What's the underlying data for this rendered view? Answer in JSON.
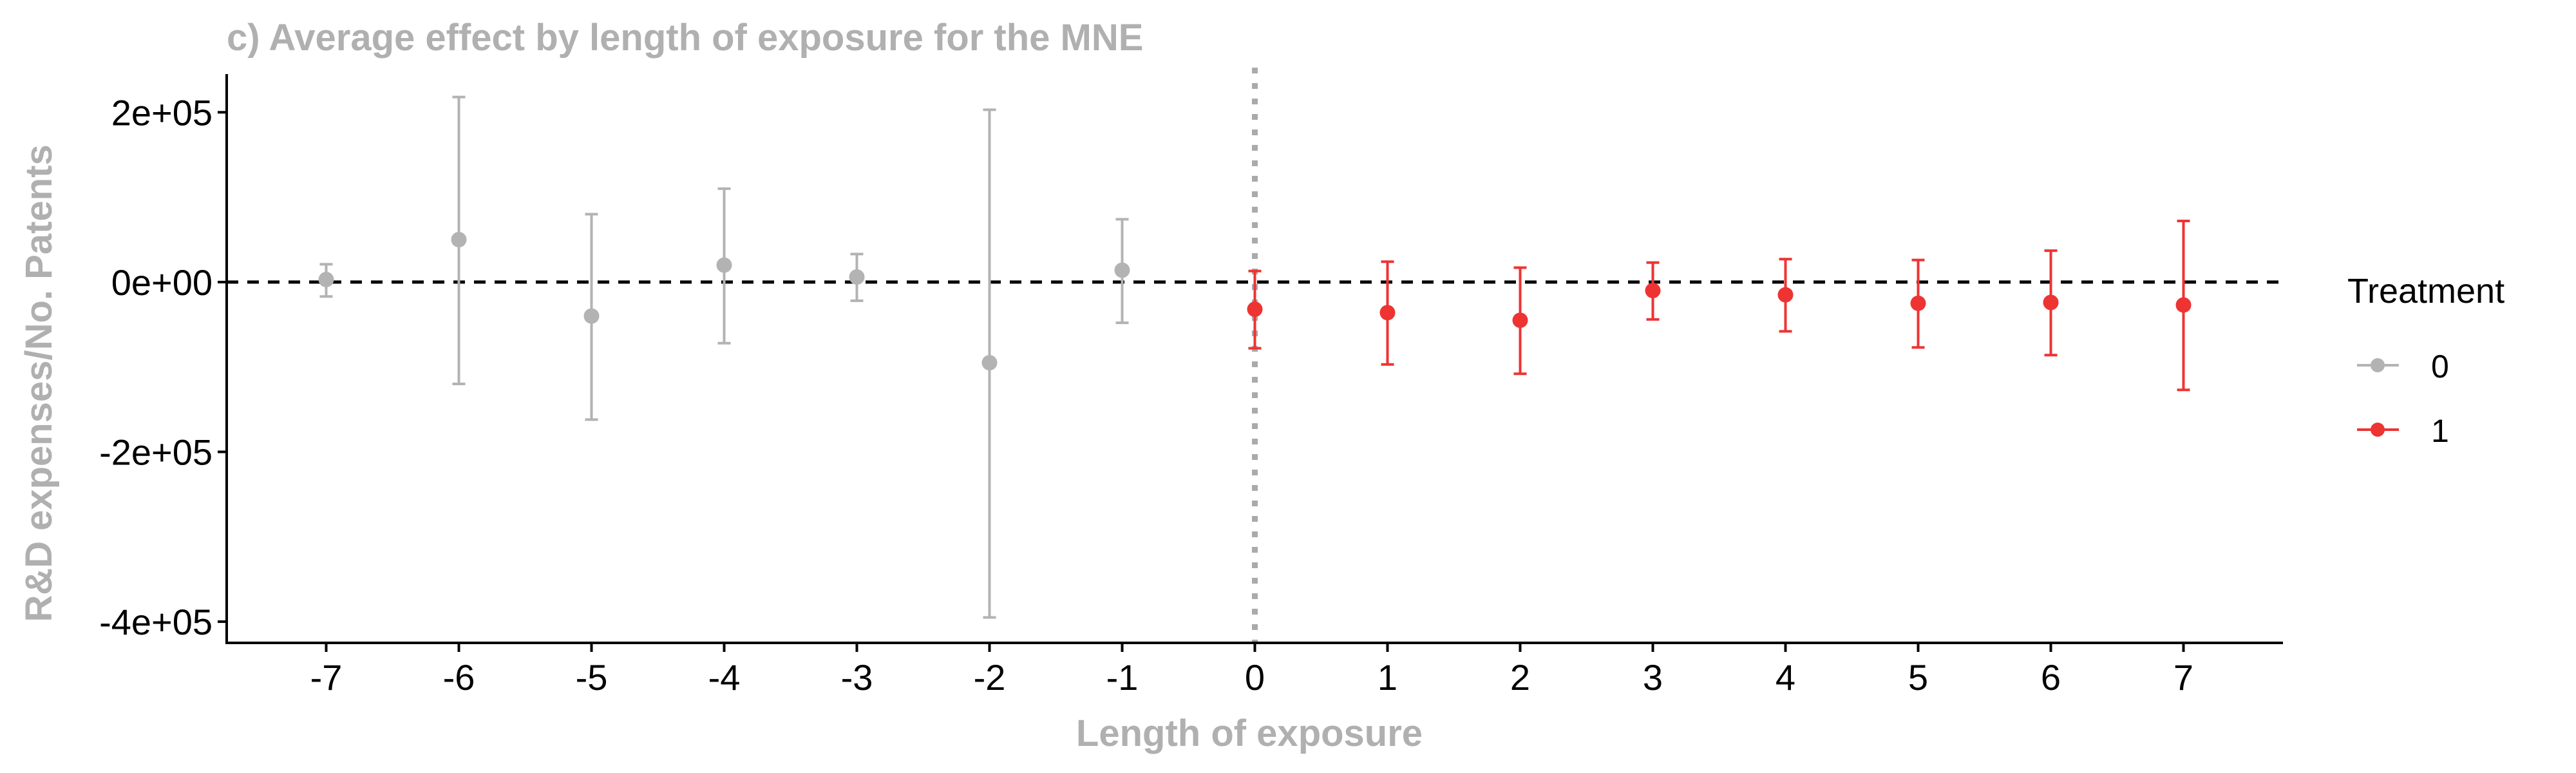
{
  "chart_data": {
    "type": "scatter",
    "title": "c) Average effect by length of exposure for the MNE",
    "xlabel": "Length of exposure",
    "ylabel": "R&D expenses/No. Patents",
    "x_ticks": [
      -7,
      -6,
      -5,
      -4,
      -3,
      -2,
      -1,
      0,
      1,
      2,
      3,
      4,
      5,
      6,
      7
    ],
    "y_ticks": [
      200000,
      0,
      -200000,
      -400000
    ],
    "y_tick_labels": [
      "2e+05",
      "0e+00",
      "-2e+05",
      "-4e+05"
    ],
    "xlim": [
      -7.75,
      7.75
    ],
    "ylim": [
      -425000,
      245000
    ],
    "reference_hline": 0,
    "reference_vline": 0,
    "grid": false,
    "legend": {
      "title": "Treatment",
      "placement": "right"
    },
    "series": [
      {
        "name": "0",
        "color": "#b3b3b3",
        "points": [
          {
            "x": -7,
            "y": 3000,
            "lo": -17000,
            "hi": 21000
          },
          {
            "x": -6,
            "y": 50000,
            "lo": -120000,
            "hi": 218000
          },
          {
            "x": -5,
            "y": -40000,
            "lo": -162000,
            "hi": 80000
          },
          {
            "x": -4,
            "y": 20000,
            "lo": -72000,
            "hi": 110000
          },
          {
            "x": -3,
            "y": 6000,
            "lo": -22000,
            "hi": 33000
          },
          {
            "x": -2,
            "y": -95000,
            "lo": -395000,
            "hi": 203000
          },
          {
            "x": -1,
            "y": 14000,
            "lo": -48000,
            "hi": 74000
          }
        ]
      },
      {
        "name": "1",
        "color": "#ee3333",
        "points": [
          {
            "x": 0,
            "y": -32000,
            "lo": -78000,
            "hi": 13000
          },
          {
            "x": 1,
            "y": -36000,
            "lo": -97000,
            "hi": 24000
          },
          {
            "x": 2,
            "y": -45000,
            "lo": -108000,
            "hi": 17000
          },
          {
            "x": 3,
            "y": -10000,
            "lo": -44000,
            "hi": 23000
          },
          {
            "x": 4,
            "y": -15000,
            "lo": -58000,
            "hi": 27000
          },
          {
            "x": 5,
            "y": -25000,
            "lo": -77000,
            "hi": 26000
          },
          {
            "x": 6,
            "y": -24000,
            "lo": -86000,
            "hi": 37000
          },
          {
            "x": 7,
            "y": -27000,
            "lo": -127000,
            "hi": 72000
          }
        ]
      }
    ]
  }
}
